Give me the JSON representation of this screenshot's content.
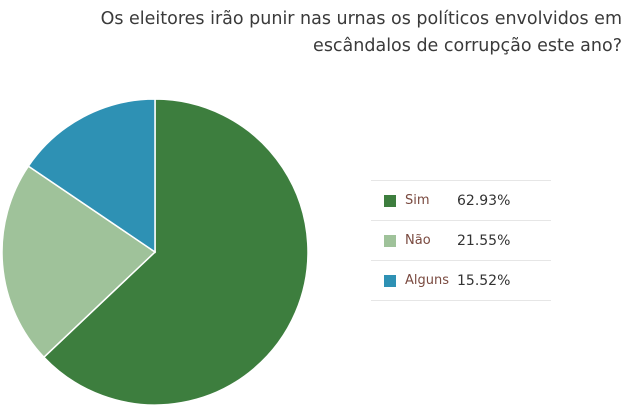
{
  "chart_data": {
    "type": "pie",
    "title": "Os eleitores irão punir nas urnas os políticos envolvidos em escândalos de corrupção este ano?",
    "categories": [
      "Sim",
      "Não",
      "Alguns"
    ],
    "values": [
      62.93,
      21.55,
      15.52
    ],
    "value_labels": [
      "62.93%",
      "21.55%",
      "15.52%"
    ],
    "colors": [
      "#3d7e3e",
      "#9fc29a",
      "#2e91b4"
    ],
    "legend_position": "right"
  }
}
